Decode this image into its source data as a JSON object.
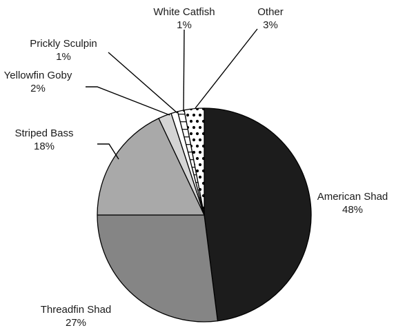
{
  "chart_data": {
    "type": "pie",
    "title": "",
    "slices": [
      {
        "label": "American Shad",
        "pct_label": "48%",
        "value": 48,
        "color": "#1c1c1c",
        "pattern": "solid"
      },
      {
        "label": "Threadfin Shad",
        "pct_label": "27%",
        "value": 27,
        "color": "#858585",
        "pattern": "solid"
      },
      {
        "label": "Striped Bass",
        "pct_label": "18%",
        "value": 18,
        "color": "#a9a9a9",
        "pattern": "solid"
      },
      {
        "label": "Yellowfin Goby",
        "pct_label": "2%",
        "value": 2,
        "color": "#d4d4d4",
        "pattern": "solid"
      },
      {
        "label": "Prickly Sculpin",
        "pct_label": "1%",
        "value": 1,
        "color": "#ffffff",
        "pattern": "solid"
      },
      {
        "label": "White Catfish",
        "pct_label": "1%",
        "value": 1,
        "color": "#ffffff",
        "pattern": "horizontal-lines"
      },
      {
        "label": "Other",
        "pct_label": "3%",
        "value": 3,
        "color": "#ffffff",
        "pattern": "dots"
      }
    ]
  }
}
